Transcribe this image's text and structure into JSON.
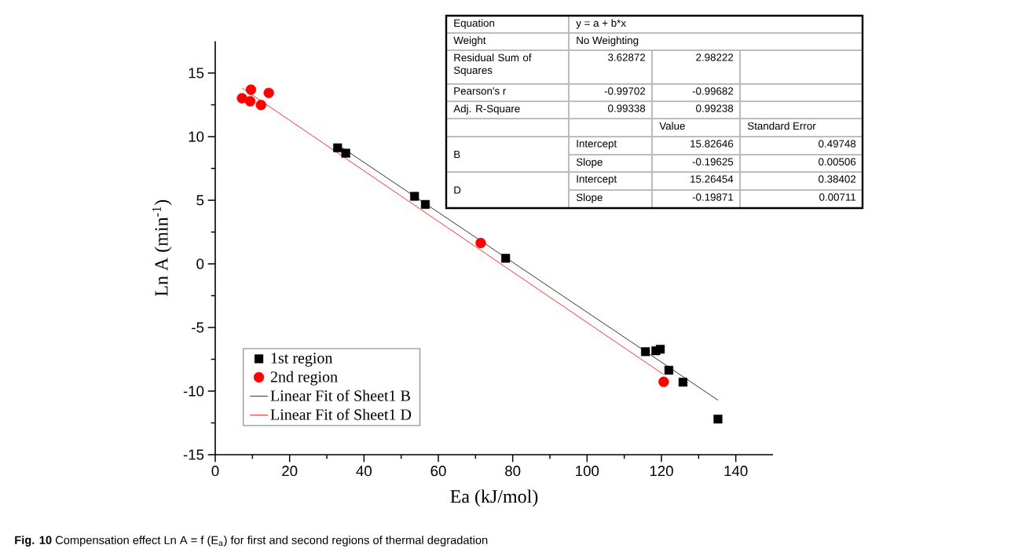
{
  "chart_data": {
    "type": "scatter",
    "xlabel": "Ea (kJ/mol)",
    "ylabel": "Ln A (min$^{-1}$)",
    "xlim": [
      0,
      150
    ],
    "ylim": [
      -15,
      17.5
    ],
    "xticks": [
      0,
      20,
      40,
      60,
      80,
      100,
      120,
      140
    ],
    "yticks": [
      -15,
      -10,
      -5,
      0,
      5,
      10,
      15
    ],
    "legend": "bottom left",
    "series": [
      {
        "name": "1st region",
        "marker": "square",
        "color": "#000000",
        "x": [
          32.9,
          35.1,
          53.6,
          56.5,
          78.1,
          115.7,
          118.5,
          119.7,
          122.0,
          125.8,
          135.2
        ],
        "values": [
          9.12,
          8.7,
          5.31,
          4.67,
          0.44,
          -6.9,
          -6.83,
          -6.71,
          -8.36,
          -9.3,
          -12.2
        ]
      },
      {
        "name": "2nd region",
        "marker": "circle",
        "color": "#ff0000",
        "x": [
          7.2,
          9.6,
          9.4,
          12.3,
          14.4,
          71.4,
          120.6
        ],
        "values": [
          13.02,
          13.69,
          12.78,
          12.49,
          13.44,
          1.64,
          -9.27
        ]
      },
      {
        "name": "Linear Fit of Sheet1 B",
        "type": "line",
        "color": "#000000",
        "x": [
          32.9,
          135.2
        ],
        "values": [
          9.37,
          -10.71
        ]
      },
      {
        "name": "Linear Fit of Sheet1 D",
        "type": "line",
        "color": "#ff0000",
        "x": [
          7.2,
          120.6
        ],
        "values": [
          13.83,
          -8.7
        ]
      }
    ],
    "annotations": [
      "**Fig. 10** Compensation effect Ln A = f (E$_{a}$) for first and second regions of thermal degradation",
      "Equation",
      "y = a + b*x",
      "Weight",
      "No Weighting",
      "Residual Sum of Squares",
      "3.62872",
      "2.98222",
      "Pearson's r",
      "-0.99702",
      "-0.99682",
      "Adj. R-Square",
      "0.99338",
      "0.99238",
      "Value",
      "Standard Error",
      "B",
      "Intercept",
      "15.82646",
      "0.49748",
      "Slope",
      "-0.19625",
      "0.00506",
      "D",
      "Intercept",
      "15.26454",
      "0.38402",
      "Slope",
      "-0.19871",
      "0.00711"
    ]
  }
}
